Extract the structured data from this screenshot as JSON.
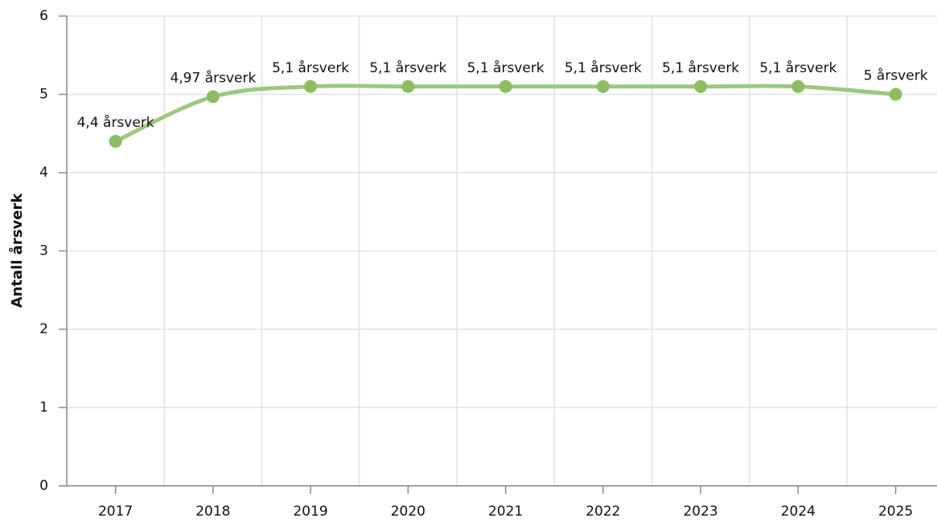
{
  "chart_data": {
    "type": "line",
    "y_label": "Antall årsverk",
    "categories": [
      "2017",
      "2018",
      "2019",
      "2020",
      "2021",
      "2022",
      "2023",
      "2024",
      "2025"
    ],
    "series": [
      {
        "name": "Antall årsverk",
        "color": "#9dc77f",
        "marker_color": "#8cbd63",
        "values": [
          4.4,
          4.97,
          5.1,
          5.1,
          5.1,
          5.1,
          5.1,
          5.1,
          5
        ],
        "value_labels": [
          "4,4 årsverk",
          "4,97 årsverk",
          "5,1 årsverk",
          "5,1 årsverk",
          "5,1 årsverk",
          "5,1 årsverk",
          "5,1 årsverk",
          "5,1 årsverk",
          "5 årsverk"
        ]
      }
    ],
    "ylim": [
      0,
      6
    ],
    "yticks": [
      0,
      1,
      2,
      3,
      4,
      5,
      6
    ],
    "grid": true
  }
}
